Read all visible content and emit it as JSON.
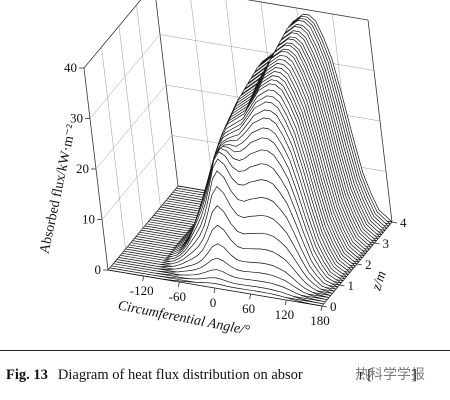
{
  "chart_data": {
    "type": "surface",
    "zlabel": "Absorbed flux/kW·m⁻²",
    "xlabel": "Circumferential Angle/°",
    "ylabel": "z/m",
    "x_ticks": [
      "-120",
      "-60",
      "0",
      "60",
      "120",
      "180"
    ],
    "y_ticks": [
      "0",
      "1",
      "2",
      "3",
      "4"
    ],
    "z_ticks": [
      "0",
      "10",
      "20",
      "30",
      "40"
    ],
    "xlim": [
      -180,
      180
    ],
    "ylim": [
      0,
      4
    ],
    "zlim": [
      0,
      40
    ],
    "grid": true,
    "line_color": "#000000",
    "surface": {
      "z_positions": [
        0.0,
        0.1,
        0.2,
        0.3,
        0.4,
        0.5,
        0.6,
        0.7,
        0.8,
        0.9,
        1.0,
        1.1,
        1.2,
        1.3,
        1.4,
        1.5,
        1.6,
        1.7,
        1.8,
        1.9,
        2.0,
        2.1,
        2.2,
        2.3,
        2.4,
        2.5,
        2.6,
        2.7,
        2.8,
        2.9,
        3.0,
        3.1,
        3.2,
        3.3,
        3.4,
        3.5,
        3.6,
        3.7,
        3.8,
        3.9,
        4.0
      ],
      "angles": [
        -180,
        -170,
        -160,
        -150,
        -140,
        -130,
        -120,
        -110,
        -100,
        -90,
        -80,
        -70,
        -60,
        -50,
        -40,
        -30,
        -20,
        -10,
        0,
        10,
        20,
        30,
        40,
        50,
        60,
        70,
        80,
        90,
        100,
        110,
        120,
        130,
        140,
        150,
        160,
        170,
        180
      ],
      "profile_flux_kW_m2_at_z_4": [
        0,
        0,
        0,
        0,
        0,
        0,
        0,
        0,
        1,
        2,
        4,
        7,
        11,
        15,
        19,
        23,
        26,
        28,
        29,
        30,
        31,
        33,
        35,
        37,
        38,
        39,
        39,
        38,
        35,
        31,
        24,
        16,
        9,
        5,
        2,
        1,
        0
      ],
      "amplitude_by_z": [
        0.02,
        0.03,
        0.05,
        0.08,
        0.12,
        0.18,
        0.25,
        0.33,
        0.41,
        0.49,
        0.56,
        0.62,
        0.67,
        0.71,
        0.75,
        0.78,
        0.81,
        0.83,
        0.85,
        0.87,
        0.88,
        0.89,
        0.9,
        0.91,
        0.92,
        0.93,
        0.94,
        0.95,
        0.95,
        0.96,
        0.96,
        0.97,
        0.97,
        0.98,
        0.98,
        0.99,
        0.99,
        1.0,
        1.0,
        1.0,
        1.0
      ],
      "secondary_peak_flux_kW_m2": 8,
      "secondary_peak_z_m": 0.8,
      "secondary_peak_angle": 0
    }
  },
  "caption": {
    "fig_label": "Fig. 13",
    "text": "Diagram of heat flux distribution on absor",
    "tail": "r [",
    "end": "]"
  },
  "watermark": {
    "text": "热科学学报"
  }
}
